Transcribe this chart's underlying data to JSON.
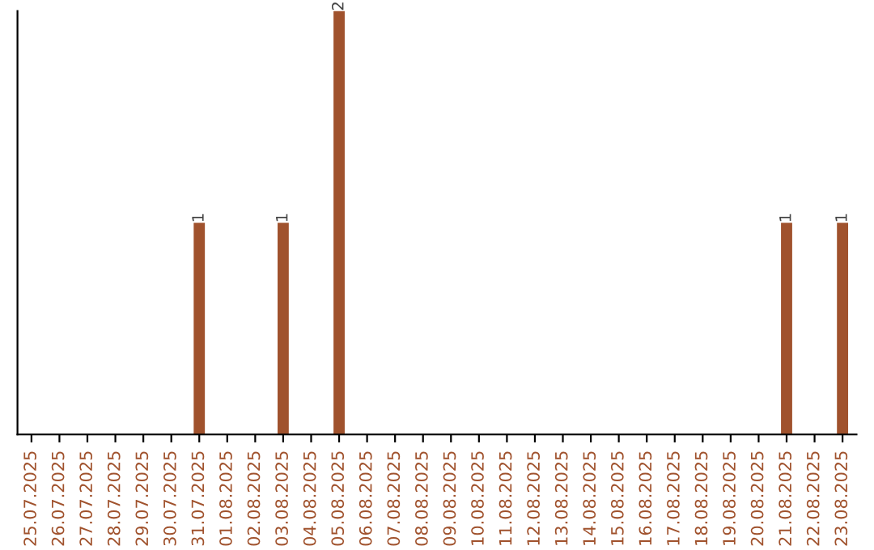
{
  "chart_data": {
    "type": "bar",
    "categories": [
      "25.07.2025",
      "26.07.2025",
      "27.07.2025",
      "28.07.2025",
      "29.07.2025",
      "30.07.2025",
      "31.07.2025",
      "01.08.2025",
      "02.08.2025",
      "03.08.2025",
      "04.08.2025",
      "05.08.2025",
      "06.08.2025",
      "07.08.2025",
      "08.08.2025",
      "09.08.2025",
      "10.08.2025",
      "11.08.2025",
      "12.08.2025",
      "13.08.2025",
      "14.08.2025",
      "15.08.2025",
      "16.08.2025",
      "17.08.2025",
      "18.08.2025",
      "19.08.2025",
      "20.08.2025",
      "21.08.2025",
      "22.08.2025",
      "23.08.2025"
    ],
    "values": [
      0,
      0,
      0,
      0,
      0,
      0,
      1,
      0,
      0,
      1,
      0,
      2,
      0,
      0,
      0,
      0,
      0,
      0,
      0,
      0,
      0,
      0,
      0,
      0,
      0,
      0,
      0,
      1,
      0,
      1
    ],
    "value_labels": [
      null,
      null,
      null,
      null,
      null,
      null,
      "1",
      null,
      null,
      "1",
      null,
      "2",
      null,
      null,
      null,
      null,
      null,
      null,
      null,
      null,
      null,
      null,
      null,
      null,
      null,
      null,
      null,
      "1",
      null,
      "1"
    ],
    "color": "#a0522d",
    "grid": false,
    "legend": false
  }
}
